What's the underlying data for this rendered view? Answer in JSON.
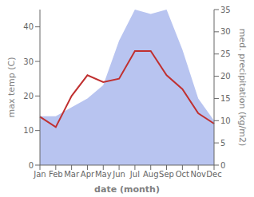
{
  "chart_data": {
    "type": "line",
    "xlabel": "date (month)",
    "ylabel": "max temp (C)",
    "y2label": "med. precipitation (kg/m2)",
    "categories": [
      "Jan",
      "Feb",
      "Mar",
      "Apr",
      "May",
      "Jun",
      "Jul",
      "Aug",
      "Sep",
      "Oct",
      "Nov",
      "Dec"
    ],
    "series": [
      {
        "type": "area",
        "axis": "y2",
        "color": "#b8c4f0",
        "values": [
          11,
          11,
          13,
          15,
          18,
          28,
          35,
          34,
          35,
          26,
          15,
          10
        ]
      },
      {
        "type": "line",
        "color": "#c03030",
        "values": [
          14,
          11,
          20,
          26,
          24,
          25,
          33,
          33,
          26,
          22,
          15,
          12
        ]
      }
    ],
    "ylim": [
      0,
      45
    ],
    "yticks": [
      0,
      10,
      20,
      30,
      40
    ],
    "y2lim": [
      0,
      35
    ],
    "y2ticks": [
      0,
      5,
      10,
      15,
      20,
      25,
      30,
      35
    ]
  }
}
